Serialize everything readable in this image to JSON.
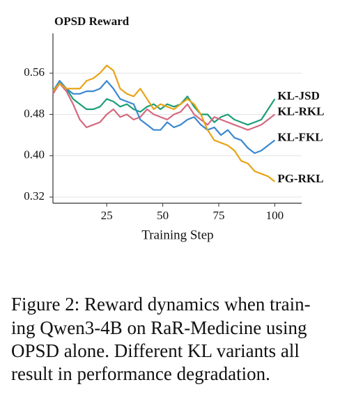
{
  "chart_data": {
    "type": "line",
    "title": "OPSD Reward",
    "x_label": "Training Step",
    "x": [
      1,
      4,
      7,
      10,
      13,
      16,
      19,
      22,
      25,
      28,
      31,
      34,
      37,
      40,
      43,
      46,
      49,
      52,
      55,
      58,
      61,
      64,
      67,
      70,
      73,
      76,
      79,
      82,
      85,
      88,
      91,
      94,
      97,
      100
    ],
    "series": [
      {
        "name": "KL-JSD",
        "color": "#1b9e77",
        "values": [
          0.525,
          0.545,
          0.53,
          0.51,
          0.5,
          0.49,
          0.49,
          0.495,
          0.51,
          0.505,
          0.495,
          0.5,
          0.49,
          0.485,
          0.495,
          0.5,
          0.49,
          0.5,
          0.495,
          0.5,
          0.515,
          0.495,
          0.48,
          0.48,
          0.465,
          0.475,
          0.48,
          0.47,
          0.465,
          0.46,
          0.465,
          0.47,
          0.49,
          0.51
        ]
      },
      {
        "name": "KL-RKL",
        "color": "#d4697f",
        "values": [
          0.52,
          0.54,
          0.525,
          0.5,
          0.47,
          0.455,
          0.46,
          0.465,
          0.48,
          0.49,
          0.475,
          0.48,
          0.47,
          0.475,
          0.49,
          0.48,
          0.475,
          0.47,
          0.48,
          0.485,
          0.5,
          0.48,
          0.47,
          0.46,
          0.475,
          0.47,
          0.465,
          0.46,
          0.455,
          0.45,
          0.455,
          0.46,
          0.47,
          0.48
        ]
      },
      {
        "name": "KL-FKL",
        "color": "#3a87d0",
        "values": [
          0.525,
          0.545,
          0.53,
          0.52,
          0.52,
          0.525,
          0.525,
          0.53,
          0.545,
          0.53,
          0.51,
          0.505,
          0.5,
          0.47,
          0.46,
          0.45,
          0.45,
          0.465,
          0.455,
          0.46,
          0.47,
          0.475,
          0.46,
          0.45,
          0.455,
          0.44,
          0.45,
          0.435,
          0.43,
          0.415,
          0.405,
          0.41,
          0.42,
          0.43
        ]
      },
      {
        "name": "PG-RKL",
        "color": "#e8a317",
        "values": [
          0.525,
          0.54,
          0.53,
          0.53,
          0.53,
          0.545,
          0.55,
          0.56,
          0.575,
          0.565,
          0.53,
          0.52,
          0.515,
          0.53,
          0.51,
          0.49,
          0.5,
          0.495,
          0.49,
          0.5,
          0.51,
          0.5,
          0.48,
          0.45,
          0.43,
          0.425,
          0.42,
          0.41,
          0.39,
          0.385,
          0.37,
          0.365,
          0.36,
          0.35
        ]
      }
    ],
    "xlim": [
      1,
      112
    ],
    "xticks": [
      25,
      50,
      75,
      100
    ],
    "ylim": [
      0.308,
      0.637
    ],
    "yticks": [
      0.32,
      {
        "value": 0.4,
        "label": "0.40"
      },
      0.48,
      0.56
    ],
    "grid": true
  },
  "caption": {
    "lines": [
      "Figure 2: Reward dynamics when train-",
      "ing Qwen3-4B on RaR-Medicine using",
      "OPSD alone. Different KL variants all",
      "result in performance degradation."
    ]
  }
}
